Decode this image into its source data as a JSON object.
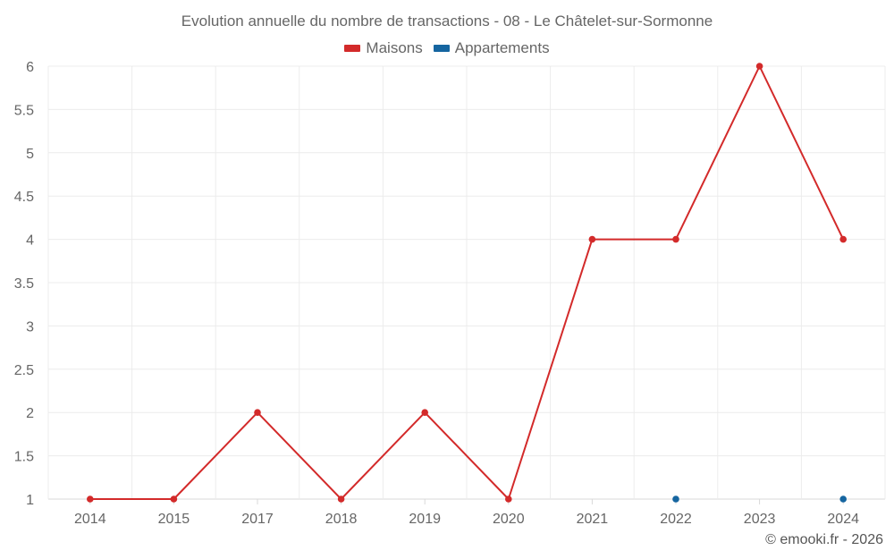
{
  "chart_data": {
    "type": "line",
    "title": "Evolution annuelle du nombre de transactions - 08 - Le Châtelet-sur-Sormonne",
    "categories": [
      "2014",
      "2015",
      "2017",
      "2018",
      "2019",
      "2020",
      "2021",
      "2022",
      "2023",
      "2024"
    ],
    "y_ticks": [
      "1",
      "1.5",
      "2",
      "2.5",
      "3",
      "3.5",
      "4",
      "4.5",
      "5",
      "5.5",
      "6"
    ],
    "ylim": [
      1,
      6
    ],
    "grid": true,
    "legend_position": "top-center",
    "series": [
      {
        "name": "Maisons",
        "color": "#d32a2a",
        "values": [
          1,
          1,
          2,
          1,
          2,
          1,
          4,
          4,
          6,
          4
        ]
      },
      {
        "name": "Appartements",
        "color": "#1565a0",
        "values": [
          null,
          null,
          null,
          null,
          null,
          null,
          null,
          1,
          null,
          1
        ]
      }
    ],
    "xlabel": "",
    "ylabel": ""
  },
  "credit": "© emooki.fr - 2026"
}
